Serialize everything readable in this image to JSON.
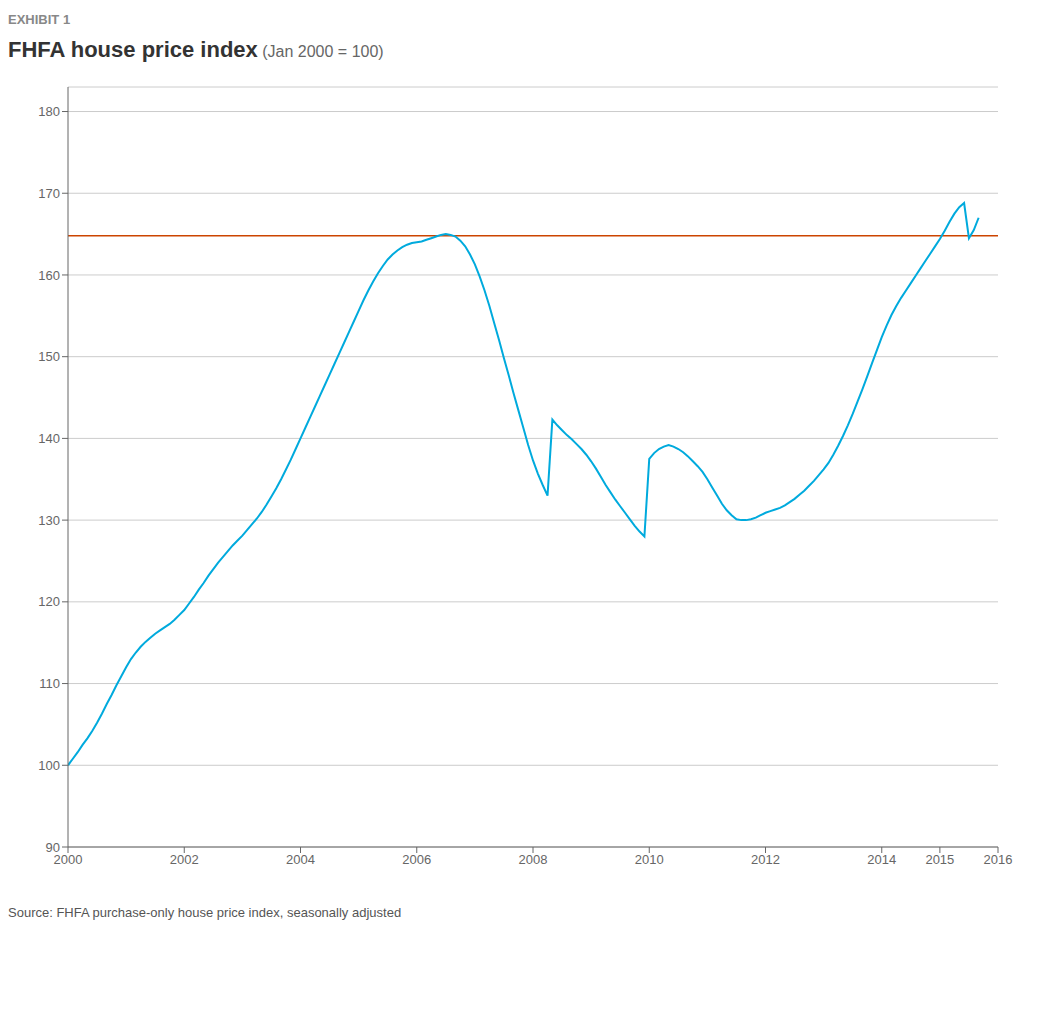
{
  "chart_data": {
    "type": "line",
    "title": "FHFA house price index",
    "subtitle": "(Jan 2000 = 100)",
    "annotations": [
      "EXHIBIT 1",
      "Source: FHFA purchase-only house price index, seasonally adjusted"
    ],
    "x": [
      2000,
      2000.0833,
      2000.1667,
      2000.25,
      2000.3333,
      2000.4167,
      2000.5,
      2000.5833,
      2000.6667,
      2000.75,
      2000.8333,
      2000.9167,
      2001,
      2001.0833,
      2001.1667,
      2001.25,
      2001.3333,
      2001.4167,
      2001.5,
      2001.5833,
      2001.6667,
      2001.75,
      2001.8333,
      2001.9167,
      2002,
      2002.0833,
      2002.1667,
      2002.25,
      2002.3333,
      2002.4167,
      2002.5,
      2002.5833,
      2002.6667,
      2002.75,
      2002.8333,
      2002.9167,
      2003,
      2003.0833,
      2003.1667,
      2003.25,
      2003.3333,
      2003.4167,
      2003.5,
      2003.5833,
      2003.6667,
      2003.75,
      2003.8333,
      2003.9167,
      2004,
      2004.0833,
      2004.1667,
      2004.25,
      2004.3333,
      2004.4167,
      2004.5,
      2004.5833,
      2004.6667,
      2004.75,
      2004.8333,
      2004.9167,
      2005,
      2005.0833,
      2005.1667,
      2005.25,
      2005.3333,
      2005.4167,
      2005.5,
      2005.5833,
      2005.6667,
      2005.75,
      2005.8333,
      2005.9167,
      2006,
      2006.0833,
      2006.1667,
      2006.25,
      2006.3333,
      2006.4167,
      2006.5,
      2006.5833,
      2006.6667,
      2006.75,
      2006.8333,
      2006.9167,
      2007,
      2007.0833,
      2007.1667,
      2007.25,
      2007.3333,
      2007.4167,
      2007.5,
      2007.5833,
      2007.6667,
      2007.75,
      2007.8333,
      2007.9167,
      2008,
      2008.0833,
      2008.1667,
      2008.25,
      2008.3333,
      2008.4167,
      2008.5,
      2008.5833,
      2008.6667,
      2008.75,
      2008.8333,
      2008.9167,
      2009,
      2009.0833,
      2009.1667,
      2009.25,
      2009.3333,
      2009.4167,
      2009.5,
      2009.5833,
      2009.6667,
      2009.75,
      2009.8333,
      2009.9167,
      2010,
      2010.0833,
      2010.1667,
      2010.25,
      2010.3333,
      2010.4167,
      2010.5,
      2010.5833,
      2010.6667,
      2010.75,
      2010.8333,
      2010.9167,
      2011,
      2011.0833,
      2011.1667,
      2011.25,
      2011.3333,
      2011.4167,
      2011.5,
      2011.5833,
      2011.6667,
      2011.75,
      2011.8333,
      2011.9167,
      2012,
      2012.0833,
      2012.1667,
      2012.25,
      2012.3333,
      2012.4167,
      2012.5,
      2012.5833,
      2012.6667,
      2012.75,
      2012.8333,
      2012.9167,
      2013,
      2013.0833,
      2013.1667,
      2013.25,
      2013.3333,
      2013.4167,
      2013.5,
      2013.5833,
      2013.6667,
      2013.75,
      2013.8333,
      2013.9167,
      2014,
      2014.0833,
      2014.1667,
      2014.25,
      2014.3333,
      2014.4167,
      2014.5,
      2014.5833,
      2014.6667,
      2014.75,
      2014.8333,
      2014.9167,
      2015,
      2015.0833,
      2015.1667,
      2015.25,
      2015.3333,
      2015.4167,
      2015.5,
      2015.5833,
      2015.6667
    ],
    "series": [
      {
        "name": "FHFA house price index",
        "color": "#00AADD",
        "values": [
          100.0,
          100.8,
          101.6,
          102.5,
          103.3,
          104.2,
          105.2,
          106.3,
          107.5,
          108.6,
          109.8,
          110.9,
          112.0,
          113.0,
          113.8,
          114.5,
          115.1,
          115.6,
          116.1,
          116.5,
          116.9,
          117.3,
          117.8,
          118.4,
          119.0,
          119.8,
          120.6,
          121.5,
          122.3,
          123.2,
          124.0,
          124.8,
          125.5,
          126.2,
          126.9,
          127.5,
          128.1,
          128.8,
          129.5,
          130.2,
          131.0,
          131.9,
          132.9,
          133.9,
          135.0,
          136.2,
          137.4,
          138.7,
          140.0,
          141.3,
          142.6,
          143.9,
          145.2,
          146.5,
          147.8,
          149.1,
          150.4,
          151.7,
          153.0,
          154.3,
          155.6,
          156.9,
          158.1,
          159.2,
          160.2,
          161.1,
          161.9,
          162.5,
          163.0,
          163.4,
          163.7,
          163.9,
          164.0,
          164.1,
          164.3,
          164.5,
          164.7,
          164.9,
          165.0,
          164.9,
          164.7,
          164.2,
          163.5,
          162.5,
          161.3,
          159.8,
          158.1,
          156.2,
          154.1,
          152.0,
          149.8,
          147.7,
          145.5,
          143.4,
          141.3,
          139.2,
          137.3,
          135.7,
          134.3,
          133.0,
          142.3,
          141.6,
          141.0,
          140.4,
          139.9,
          139.3,
          138.7,
          138.0,
          137.2,
          136.3,
          135.3,
          134.3,
          133.4,
          132.5,
          131.7,
          130.9,
          130.1,
          129.3,
          128.6,
          128.0,
          137.5,
          138.2,
          138.7,
          139.0,
          139.2,
          139.0,
          138.7,
          138.3,
          137.8,
          137.2,
          136.6,
          135.9,
          135.0,
          134.0,
          133.0,
          132.0,
          131.2,
          130.6,
          130.1,
          130.0,
          130.0,
          130.1,
          130.3,
          130.6,
          130.9,
          131.1,
          131.3,
          131.5,
          131.8,
          132.2,
          132.6,
          133.1,
          133.6,
          134.2,
          134.8,
          135.5,
          136.2,
          137.0,
          138.0,
          139.1,
          140.3,
          141.6,
          143.0,
          144.5,
          146.0,
          147.6,
          149.2,
          150.8,
          152.4,
          153.8,
          155.1,
          156.2,
          157.2,
          158.1,
          159.0,
          159.9,
          160.8,
          161.7,
          162.6,
          163.5,
          164.4,
          165.4,
          166.5,
          167.5,
          168.3,
          168.8,
          164.5,
          165.5,
          167.0
        ]
      }
    ],
    "reference_line": {
      "y": 164.8,
      "color": "#CC4400"
    },
    "xlim": [
      2000,
      2016
    ],
    "xticks": [
      2000,
      2002,
      2004,
      2006,
      2008,
      2010,
      2012,
      2014,
      2015,
      2016
    ],
    "ylim": [
      90,
      183
    ],
    "yticks": [
      90,
      100,
      110,
      120,
      130,
      140,
      150,
      160,
      170,
      180
    ],
    "grid": true
  }
}
